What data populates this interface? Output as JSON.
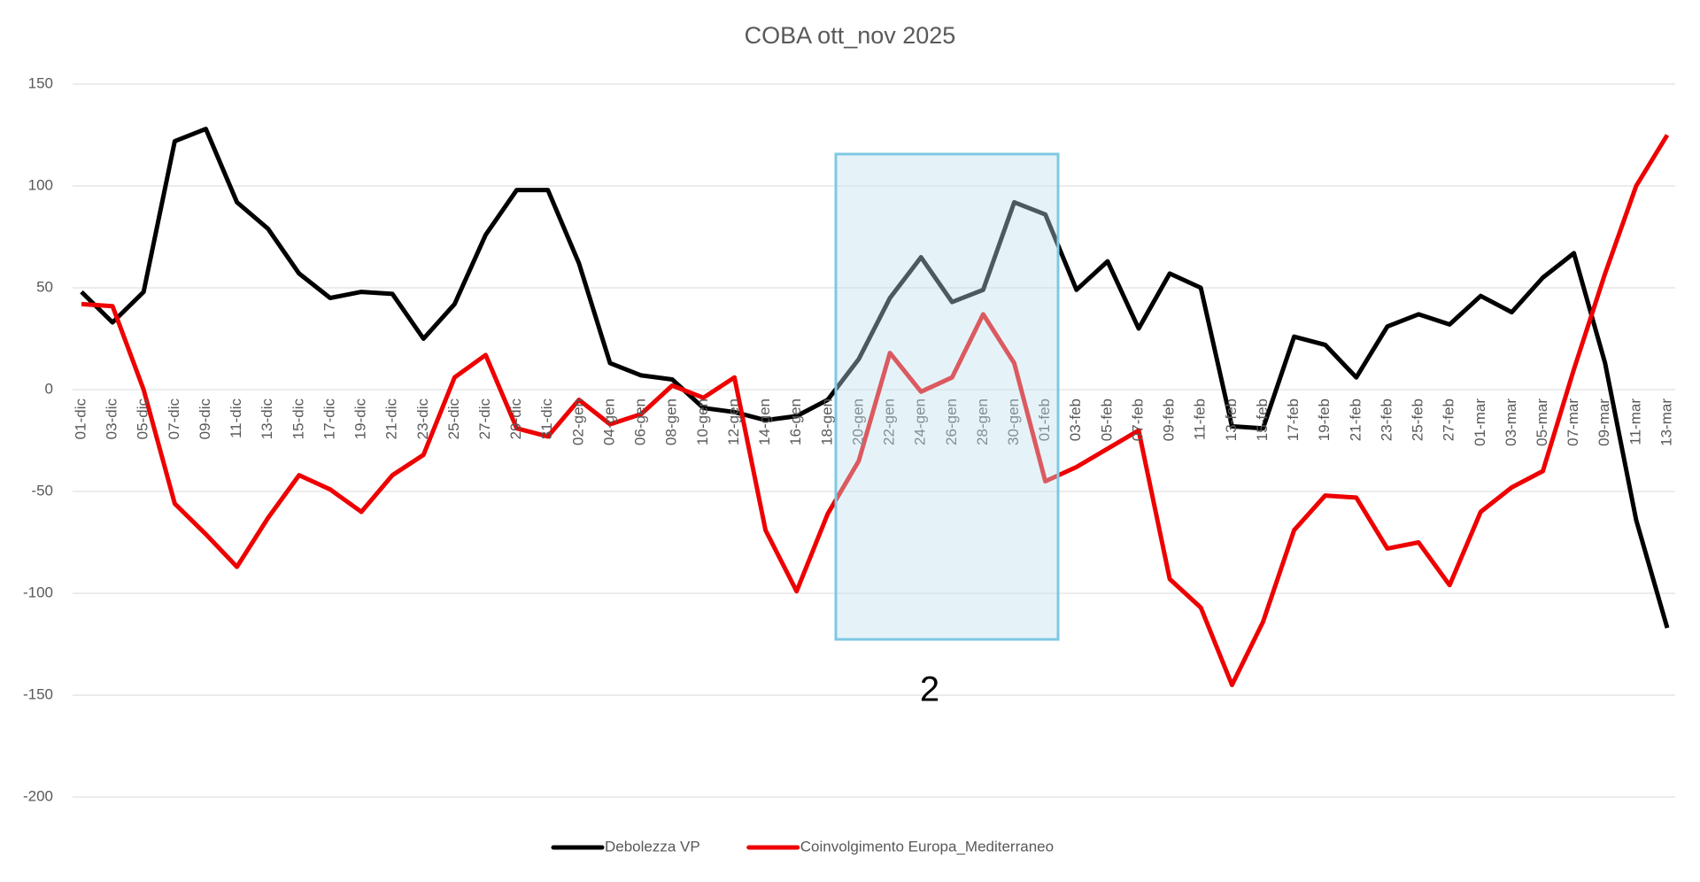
{
  "chart_data": {
    "type": "line",
    "title": "COBA ott_nov 2025",
    "categories": [
      "01-dic",
      "03-dic",
      "05-dic",
      "07-dic",
      "09-dic",
      "11-dic",
      "13-dic",
      "15-dic",
      "17-dic",
      "19-dic",
      "21-dic",
      "23-dic",
      "25-dic",
      "27-dic",
      "29-dic",
      "31-dic",
      "02-gen",
      "04-gen",
      "06-gen",
      "08-gen",
      "10-gen",
      "12-gen",
      "14-gen",
      "16-gen",
      "18-gen",
      "20-gen",
      "22-gen",
      "24-gen",
      "26-gen",
      "28-gen",
      "30-gen",
      "01-feb",
      "03-feb",
      "05-feb",
      "07-feb",
      "09-feb",
      "11-feb",
      "13-feb",
      "15-feb",
      "17-feb",
      "19-feb",
      "21-feb",
      "23-feb",
      "25-feb",
      "27-feb",
      "01-mar",
      "03-mar",
      "05-mar",
      "07-mar",
      "09-mar",
      "11-mar",
      "13-mar"
    ],
    "series": [
      {
        "name": "Debolezza VP",
        "color": "#000000",
        "values": [
          48,
          33,
          48,
          122,
          128,
          92,
          79,
          57,
          45,
          48,
          47,
          25,
          42,
          76,
          98,
          98,
          62,
          13,
          7,
          5,
          -9,
          -11,
          -15,
          -13,
          -5,
          15,
          45,
          65,
          43,
          49,
          92,
          86,
          49,
          63,
          30,
          57,
          50,
          -18,
          -19,
          26,
          22,
          6,
          31,
          37,
          32,
          46,
          38,
          55,
          67,
          13,
          -64,
          -117
        ]
      },
      {
        "name": "Coinvolgimento Europa_Mediterraneo",
        "color": "#ee0000",
        "values": [
          42,
          41,
          0,
          -56,
          -71,
          -87,
          -63,
          -42,
          -49,
          -60,
          -42,
          -32,
          6,
          17,
          -19,
          -23,
          -5,
          -17,
          -12,
          2,
          -4,
          6,
          -69,
          -99,
          -61,
          -35,
          18,
          -1,
          6,
          37,
          13,
          -45,
          -38,
          -29,
          -20,
          -93,
          -107,
          -145,
          -114,
          -69,
          -52,
          -53,
          -78,
          -75,
          -96,
          -60,
          -48,
          -40,
          10,
          57,
          100,
          125
        ]
      }
    ],
    "ylim": [
      -200,
      150
    ],
    "yticks": [
      -200,
      -150,
      -100,
      -50,
      0,
      50,
      100,
      150
    ],
    "grid": true,
    "legend": "bottom",
    "annotation": "2"
  }
}
